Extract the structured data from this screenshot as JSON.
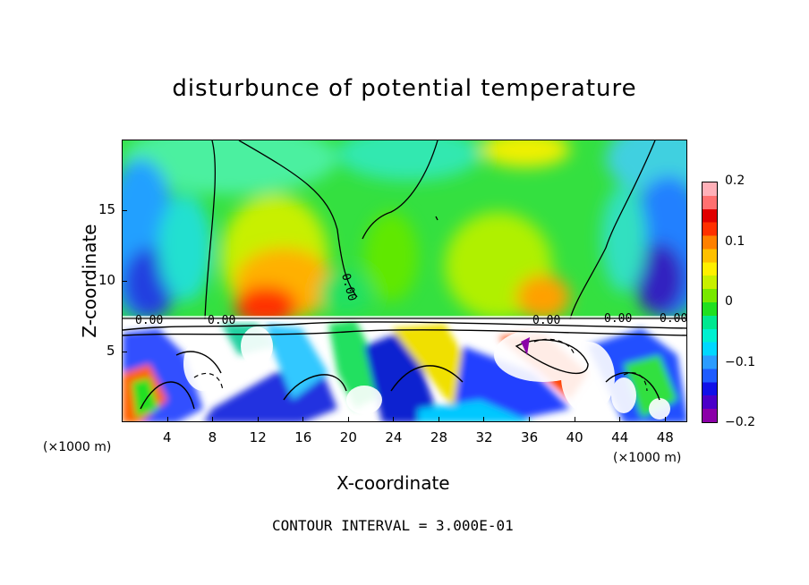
{
  "chart_data": {
    "type": "heatmap",
    "title": "disturbunce of potential temperature",
    "xlabel": "X-coordinate",
    "ylabel": "Z-coordinate",
    "x_unit": "(×1000 m)",
    "x_ticks": [
      "4",
      "8",
      "12",
      "16",
      "20",
      "24",
      "28",
      "32",
      "36",
      "40",
      "44",
      "48"
    ],
    "y_ticks": [
      "5",
      "10",
      "15"
    ],
    "xlim": [
      0,
      50
    ],
    "ylim": [
      0,
      20
    ],
    "colorbar": {
      "ticks": [
        "0.2",
        "0.1",
        "0",
        "−0.1",
        "−0.2"
      ],
      "range": [
        -0.2,
        0.2
      ],
      "colors": [
        "#8b00a8",
        "#4b00c8",
        "#1010e8",
        "#1e5cff",
        "#2b9cff",
        "#00d8ff",
        "#00f0d0",
        "#00e890",
        "#20e020",
        "#78e800",
        "#c8f000",
        "#fff000",
        "#ffc000",
        "#ff8000",
        "#ff3000",
        "#e00000",
        "#ff7070",
        "#ffb0b8"
      ]
    },
    "contour_labels": [
      "0.00",
      "0.00",
      "0.00",
      "0.00",
      "0.00",
      "0.00"
    ],
    "footer": "CONTOUR INTERVAL = 3.000E-01"
  }
}
